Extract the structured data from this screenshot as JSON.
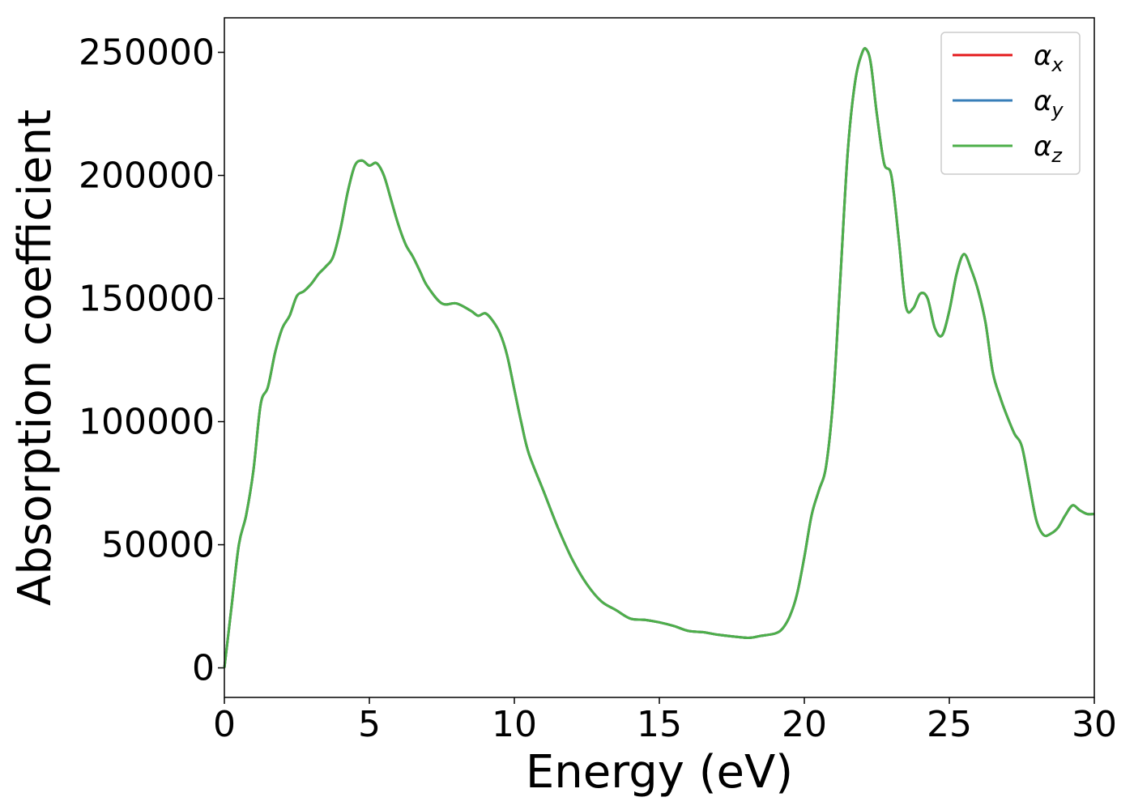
{
  "chart_data": {
    "type": "line",
    "title": "",
    "xlabel": "Energy (eV)",
    "ylabel": "Absorption coefficient",
    "xlim": [
      0,
      30
    ],
    "ylim": [
      -12000,
      264000
    ],
    "xticks": [
      0,
      5,
      10,
      15,
      20,
      25,
      30
    ],
    "xtick_labels": [
      "0",
      "5",
      "10",
      "15",
      "20",
      "25",
      "30"
    ],
    "yticks": [
      0,
      50000,
      100000,
      150000,
      200000,
      250000
    ],
    "ytick_labels": [
      "0",
      "50000",
      "100000",
      "150000",
      "200000",
      "250000"
    ],
    "grid": false,
    "legend_position": "top-right",
    "x": [
      0,
      0.25,
      0.5,
      0.75,
      1.0,
      1.25,
      1.5,
      1.75,
      2.0,
      2.25,
      2.5,
      2.75,
      3.0,
      3.25,
      3.5,
      3.75,
      4.0,
      4.25,
      4.5,
      4.75,
      5.0,
      5.25,
      5.5,
      5.75,
      6.0,
      6.25,
      6.5,
      6.75,
      7.0,
      7.5,
      8.0,
      8.5,
      8.75,
      9.0,
      9.25,
      9.5,
      9.75,
      10.0,
      10.25,
      10.5,
      11.0,
      11.5,
      12.0,
      12.5,
      13.0,
      13.5,
      14.0,
      14.5,
      15.0,
      15.5,
      16.0,
      16.5,
      17.0,
      17.5,
      18.0,
      18.25,
      18.5,
      19.0,
      19.25,
      19.5,
      19.75,
      20.0,
      20.25,
      20.5,
      20.75,
      21.0,
      21.25,
      21.5,
      21.75,
      22.0,
      22.15,
      22.3,
      22.5,
      22.75,
      23.0,
      23.25,
      23.5,
      23.75,
      24.0,
      24.25,
      24.5,
      24.75,
      25.0,
      25.25,
      25.5,
      25.75,
      26.0,
      26.25,
      26.5,
      26.75,
      27.0,
      27.25,
      27.5,
      27.75,
      28.0,
      28.25,
      28.5,
      28.75,
      29.0,
      29.25,
      29.5,
      29.75,
      30.0
    ],
    "series": [
      {
        "name": "α_x",
        "color": "#e41a1c",
        "values": [
          0,
          25000,
          50000,
          62000,
          80000,
          107000,
          114000,
          128000,
          138000,
          143000,
          151000,
          153000,
          156000,
          160000,
          163000,
          167000,
          178000,
          193000,
          204000,
          206000,
          204000,
          205000,
          200000,
          190000,
          180000,
          172000,
          167000,
          161000,
          155000,
          148000,
          148000,
          145000,
          143000,
          144000,
          141000,
          136000,
          127000,
          113000,
          99000,
          87000,
          72000,
          57000,
          44000,
          34000,
          27000,
          23500,
          20000,
          19500,
          18500,
          17000,
          15000,
          14500,
          13500,
          12800,
          12200,
          12400,
          13000,
          14000,
          16000,
          21000,
          30000,
          45000,
          62000,
          72000,
          82000,
          110000,
          160000,
          210000,
          238000,
          250000,
          251000,
          245000,
          225000,
          205000,
          200000,
          175000,
          147000,
          146000,
          152000,
          150000,
          138000,
          135000,
          145000,
          160000,
          168000,
          162000,
          153000,
          140000,
          120000,
          110000,
          102000,
          95000,
          90000,
          75000,
          60000,
          54000,
          54500,
          57000,
          62000,
          66000,
          64000,
          62500,
          62500
        ]
      },
      {
        "name": "α_y",
        "color": "#377eb8",
        "values": [
          0,
          25000,
          50000,
          62000,
          80000,
          107000,
          114000,
          128000,
          138000,
          143000,
          151000,
          153000,
          156000,
          160000,
          163000,
          167000,
          178000,
          193000,
          204000,
          206000,
          204000,
          205000,
          200000,
          190000,
          180000,
          172000,
          167000,
          161000,
          155000,
          148000,
          148000,
          145000,
          143000,
          144000,
          141000,
          136000,
          127000,
          113000,
          99000,
          87000,
          72000,
          57000,
          44000,
          34000,
          27000,
          23500,
          20000,
          19500,
          18500,
          17000,
          15000,
          14500,
          13500,
          12800,
          12200,
          12400,
          13000,
          14000,
          16000,
          21000,
          30000,
          45000,
          62000,
          72000,
          82000,
          110000,
          160000,
          210000,
          238000,
          250000,
          251000,
          245000,
          225000,
          205000,
          200000,
          175000,
          147000,
          146000,
          152000,
          150000,
          138000,
          135000,
          145000,
          160000,
          168000,
          162000,
          153000,
          140000,
          120000,
          110000,
          102000,
          95000,
          90000,
          75000,
          60000,
          54000,
          54500,
          57000,
          62000,
          66000,
          64000,
          62500,
          62500
        ]
      },
      {
        "name": "α_z",
        "color": "#4daf4a",
        "values": [
          0,
          25000,
          50000,
          62000,
          80000,
          107000,
          114000,
          128000,
          138000,
          143000,
          151000,
          153000,
          156000,
          160000,
          163000,
          167000,
          178000,
          193000,
          204000,
          206000,
          204000,
          205000,
          200000,
          190000,
          180000,
          172000,
          167000,
          161000,
          155000,
          148000,
          148000,
          145000,
          143000,
          144000,
          141000,
          136000,
          127000,
          113000,
          99000,
          87000,
          72000,
          57000,
          44000,
          34000,
          27000,
          23500,
          20000,
          19500,
          18500,
          17000,
          15000,
          14500,
          13500,
          12800,
          12200,
          12400,
          13000,
          14000,
          16000,
          21000,
          30000,
          45000,
          62000,
          72000,
          82000,
          110000,
          160000,
          210000,
          238000,
          250000,
          251000,
          245000,
          225000,
          205000,
          200000,
          175000,
          147000,
          146000,
          152000,
          150000,
          138000,
          135000,
          145000,
          160000,
          168000,
          162000,
          153000,
          140000,
          120000,
          110000,
          102000,
          95000,
          90000,
          75000,
          60000,
          54000,
          54500,
          57000,
          62000,
          66000,
          64000,
          62500,
          62500
        ]
      }
    ],
    "legend": [
      {
        "base": "α",
        "sub": "x",
        "color": "#e41a1c"
      },
      {
        "base": "α",
        "sub": "y",
        "color": "#377eb8"
      },
      {
        "base": "α",
        "sub": "z",
        "color": "#4daf4a"
      }
    ]
  }
}
